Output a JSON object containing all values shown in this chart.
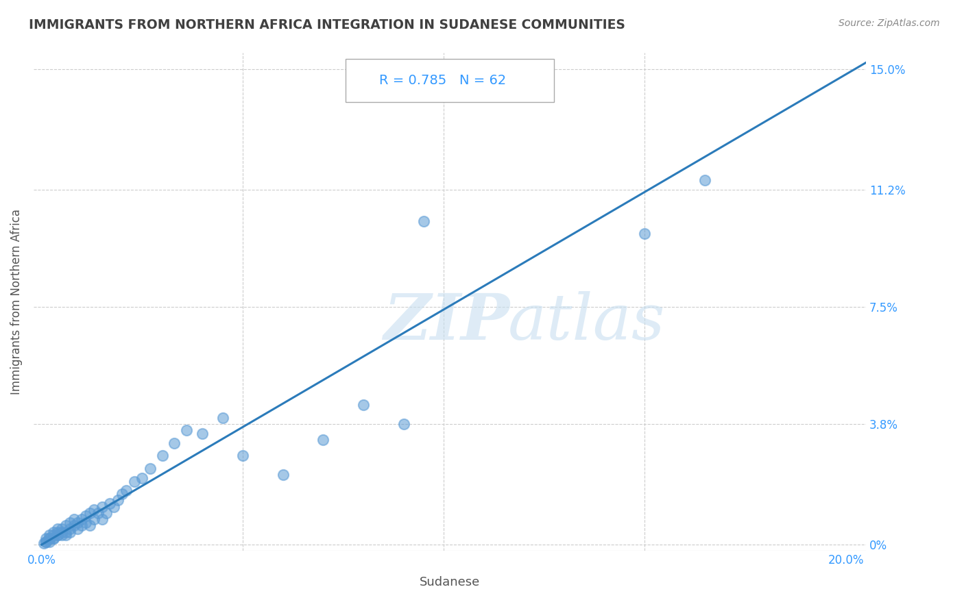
{
  "title": "IMMIGRANTS FROM NORTHERN AFRICA INTEGRATION IN SUDANESE COMMUNITIES",
  "source": "Source: ZipAtlas.com",
  "xlabel": "Sudanese",
  "ylabel": "Immigrants from Northern Africa",
  "R": 0.785,
  "N": 62,
  "xlim": [
    -0.002,
    0.205
  ],
  "ylim": [
    -0.002,
    0.155
  ],
  "xtick_labels_ends": [
    "0.0%",
    "20.0%"
  ],
  "xtick_vals_ends": [
    0.0,
    0.2
  ],
  "xtick_minor_vals": [
    0.05,
    0.1,
    0.15
  ],
  "ytick_labels": [
    "0%",
    "3.8%",
    "7.5%",
    "11.2%",
    "15.0%"
  ],
  "ytick_vals": [
    0.0,
    0.038,
    0.075,
    0.112,
    0.15
  ],
  "scatter_color": "#5b9bd5",
  "scatter_alpha": 0.55,
  "scatter_size": 120,
  "line_color": "#2b7bba",
  "line_width": 2.2,
  "grid_color": "#cccccc",
  "background_color": "#ffffff",
  "title_color": "#404040",
  "title_fontsize": 13.5,
  "axis_label_color": "#555555",
  "tick_label_color": "#3399ff",
  "watermark_color": "#c8dff0",
  "watermark_alpha": 0.6,
  "annotation_color": "#3399ff",
  "scatter_x": [
    0.0005,
    0.001,
    0.001,
    0.001,
    0.002,
    0.002,
    0.002,
    0.002,
    0.003,
    0.003,
    0.003,
    0.003,
    0.004,
    0.004,
    0.004,
    0.004,
    0.005,
    0.005,
    0.005,
    0.006,
    0.006,
    0.006,
    0.007,
    0.007,
    0.007,
    0.008,
    0.008,
    0.009,
    0.009,
    0.01,
    0.01,
    0.011,
    0.011,
    0.012,
    0.012,
    0.013,
    0.013,
    0.014,
    0.015,
    0.015,
    0.016,
    0.017,
    0.018,
    0.019,
    0.02,
    0.021,
    0.023,
    0.025,
    0.027,
    0.03,
    0.033,
    0.036,
    0.04,
    0.045,
    0.05,
    0.06,
    0.07,
    0.08,
    0.09,
    0.095,
    0.15,
    0.165
  ],
  "scatter_y": [
    0.0005,
    0.001,
    0.001,
    0.002,
    0.001,
    0.002,
    0.003,
    0.002,
    0.002,
    0.003,
    0.004,
    0.002,
    0.003,
    0.004,
    0.003,
    0.005,
    0.003,
    0.004,
    0.005,
    0.004,
    0.006,
    0.003,
    0.005,
    0.007,
    0.004,
    0.006,
    0.008,
    0.005,
    0.007,
    0.006,
    0.008,
    0.007,
    0.009,
    0.006,
    0.01,
    0.008,
    0.011,
    0.01,
    0.012,
    0.008,
    0.01,
    0.013,
    0.012,
    0.014,
    0.016,
    0.017,
    0.02,
    0.021,
    0.024,
    0.028,
    0.032,
    0.036,
    0.035,
    0.04,
    0.028,
    0.022,
    0.033,
    0.044,
    0.038,
    0.102,
    0.098,
    0.115
  ],
  "line_x": [
    0.0,
    0.205
  ],
  "line_y": [
    0.0,
    0.152
  ]
}
